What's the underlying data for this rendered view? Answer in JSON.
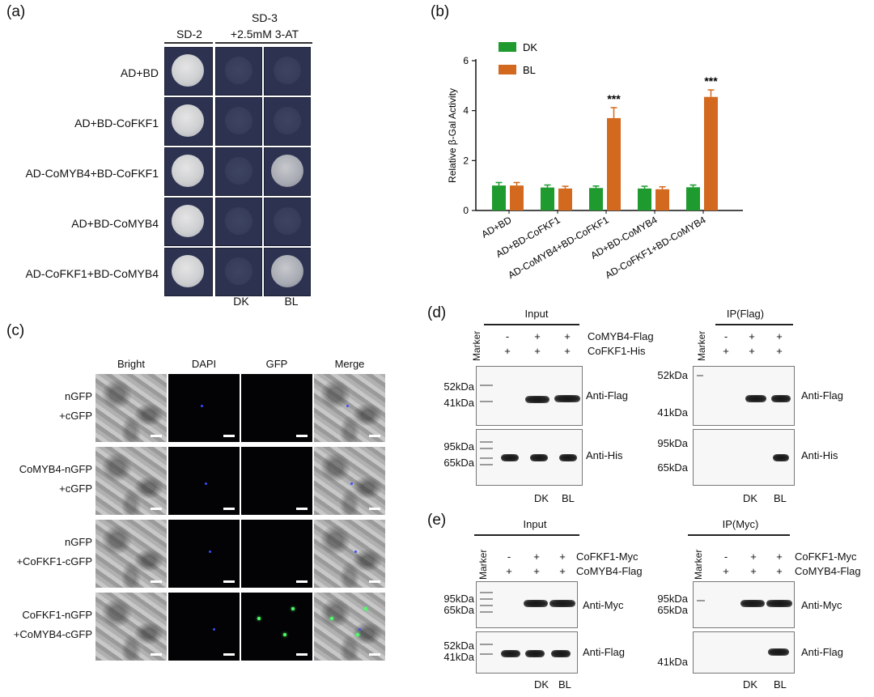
{
  "panel_a": {
    "label": "(a)",
    "col_headers": [
      "SD-2",
      "SD-3",
      "+2.5mM 3-AT"
    ],
    "rows": [
      {
        "label": "AD+BD",
        "growth": [
          "big",
          "faint",
          "faint"
        ]
      },
      {
        "label": "AD+BD-CoFKF1",
        "growth": [
          "big",
          "faint",
          "faint"
        ]
      },
      {
        "label": "AD-CoMYB4+BD-CoFKF1",
        "growth": [
          "big",
          "faint",
          "mid"
        ]
      },
      {
        "label": "AD+BD-CoMYB4",
        "growth": [
          "big",
          "faint",
          "faint"
        ]
      },
      {
        "label": "AD-CoFKF1+BD-CoMYB4",
        "growth": [
          "big",
          "faint",
          "mid"
        ]
      }
    ],
    "bottom_labels": [
      "DK",
      "BL"
    ]
  },
  "panel_b": {
    "label": "(b)",
    "significance": "***"
  },
  "chart_data": {
    "type": "bar",
    "title": "",
    "xlabel": "",
    "ylabel": "Relative β-Gal Activity",
    "ylim": [
      0,
      6
    ],
    "yticks": [
      "0",
      "2",
      "4",
      "6"
    ],
    "categories": [
      "AD+BD",
      "AD+BD-CoFKF1",
      "AD-CoMYB4+BD-CoFKF1",
      "AD+BD-CoMYB4",
      "AD-CoFKF1+BD-CoMYB4"
    ],
    "series": [
      {
        "name": "DK",
        "color": "#1e9a2e",
        "values": [
          1.0,
          0.92,
          0.9,
          0.88,
          0.93
        ],
        "errors": [
          0.12,
          0.1,
          0.08,
          0.09,
          0.09
        ]
      },
      {
        "name": "BL",
        "color": "#d2691e",
        "values": [
          1.0,
          0.88,
          3.7,
          0.85,
          4.55
        ],
        "errors": [
          0.12,
          0.09,
          0.42,
          0.1,
          0.28
        ]
      }
    ],
    "annotations": [
      {
        "category": "AD-CoMYB4+BD-CoFKF1",
        "series": "BL",
        "text": "***"
      },
      {
        "category": "AD-CoFKF1+BD-CoMYB4",
        "series": "BL",
        "text": "***"
      }
    ],
    "legend": "top-left"
  },
  "panel_c": {
    "label": "(c)",
    "col_headers": [
      "Bright",
      "DAPI",
      "GFP",
      "Merge"
    ],
    "rows": [
      {
        "line1": "nGFP",
        "line2": "+cGFP",
        "gfp": false
      },
      {
        "line1": "CoMYB4-nGFP",
        "line2": "+cGFP",
        "gfp": false
      },
      {
        "line1": "nGFP",
        "line2": "+CoFKF1-cGFP",
        "gfp": false
      },
      {
        "line1": "CoFKF1-nGFP",
        "line2": "+CoMYB4-cGFP",
        "gfp": true
      }
    ]
  },
  "panel_d": {
    "label": "(d)",
    "input_title": "Input",
    "ip_title": "IP(Flag)",
    "marker": "Marker",
    "signs_row1": [
      "-",
      "+",
      "+"
    ],
    "signs_row2": [
      "+",
      "+",
      "+"
    ],
    "row1_label": "CoMYB4-Flag",
    "row2_label": "CoFKF1-His",
    "kda_top": [
      "52kDa",
      "41kDa"
    ],
    "kda_bottom": [
      "95kDa",
      "65kDa"
    ],
    "ip_kda_top": [
      "52kDa",
      "41kDa"
    ],
    "ip_kda_bottom": [
      "95kDa",
      "65kDa"
    ],
    "antibody_top": "Anti-Flag",
    "antibody_bottom": "Anti-His",
    "lane_labels": [
      "DK",
      "BL"
    ]
  },
  "panel_e": {
    "label": "(e)",
    "input_title": "Input",
    "ip_title": "IP(Myc)",
    "marker": "Marker",
    "signs_row1": [
      "-",
      "+",
      "+"
    ],
    "signs_row2": [
      "+",
      "+",
      "+"
    ],
    "row1_label": "CoFKF1-Myc",
    "row2_label": "CoMYB4-Flag",
    "kda_top": [
      "95kDa",
      "65kDa"
    ],
    "kda_bottom": [
      "52kDa",
      "41kDa"
    ],
    "ip_kda_top": [
      "95kDa",
      "65kDa"
    ],
    "ip_kda_bottom": [
      "41kDa"
    ],
    "antibody_top": "Anti-Myc",
    "antibody_bottom": "Anti-Flag",
    "lane_labels": [
      "DK",
      "BL"
    ]
  }
}
